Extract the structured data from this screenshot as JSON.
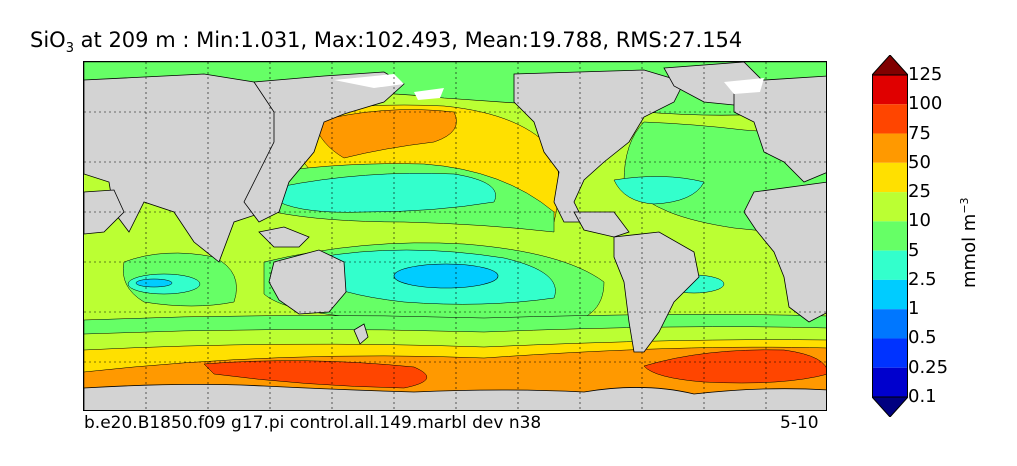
{
  "title": {
    "var_main": "SiO",
    "var_sub": "3",
    "rest": " at 209 m : Min:1.031, Max:102.493, Mean:19.788, RMS:27.154"
  },
  "footer": {
    "case_name": "b.e20.B1850.f09 g17.pi control.all.149.marbl dev n38",
    "years": "5-10"
  },
  "colorbar": {
    "units_main": "mmol m",
    "units_exp": "−3",
    "levels": [
      "0.1",
      "0.25",
      "0.5",
      "1",
      "2.5",
      "5",
      "10",
      "25",
      "50",
      "75",
      "100",
      "125"
    ],
    "colors": [
      "#000080",
      "#0000cd",
      "#0033ff",
      "#0077ff",
      "#00ccff",
      "#33ffcc",
      "#66ff66",
      "#bbff33",
      "#ffe000",
      "#ff9900",
      "#ff4500",
      "#e00000",
      "#800000"
    ],
    "extend": "both"
  },
  "map": {
    "projection": "cylindrical",
    "land_color": "#d3d3d3",
    "sea_ice_color": "#ffffff",
    "grid": "dashed",
    "contour_lines": true
  }
}
